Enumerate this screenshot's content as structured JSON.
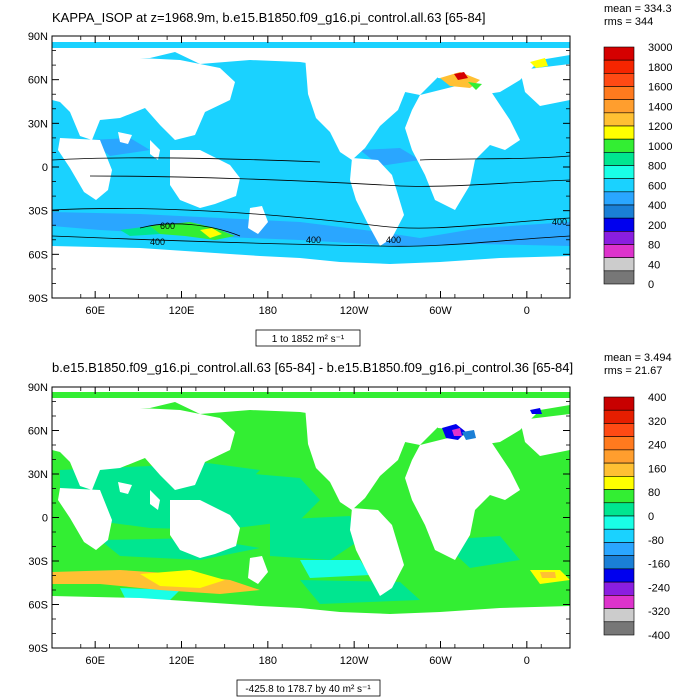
{
  "chart_data": [
    {
      "type": "heatmap",
      "title": "KAPPA_ISOP at z=1968.9m, b.e15.B1850.f09_g16.pi_control.all.63 [65-84]",
      "stats": [
        "mean = 334.3",
        "rms = 344"
      ],
      "y_ticks": [
        "90N",
        "60N",
        "30N",
        "0",
        "30S",
        "60S",
        "90S"
      ],
      "x_ticks": [
        "60E",
        "120E",
        "180",
        "120W",
        "60W",
        "0"
      ],
      "range_label": "1 to 1852 m² s⁻¹",
      "contour_labels": [
        "600",
        "400",
        "400",
        "400",
        "400"
      ],
      "colorbar": {
        "labels": [
          "3000",
          "1800",
          "1600",
          "1400",
          "1200",
          "1000",
          "800",
          "600",
          "400",
          "200",
          "80",
          "40",
          "0"
        ],
        "colors": [
          "#d50000",
          "#f52500",
          "#ff4a14",
          "#ff7a1e",
          "#ff9e2e",
          "#ffc033",
          "#ffff00",
          "#33ee33",
          "#00e690",
          "#19ffe6",
          "#1ad2ff",
          "#2aa6ff",
          "#1a7fd6",
          "#0000ee",
          "#8a1ee0",
          "#dd33cc",
          "#cccccc",
          "#777777"
        ]
      }
    },
    {
      "type": "heatmap",
      "title": "b.e15.B1850.f09_g16.pi_control.all.63 [65-84] - b.e15.B1850.f09_g16.pi_control.36 [65-84]",
      "stats": [
        "mean = 3.494",
        "rms = 21.67"
      ],
      "y_ticks": [
        "90N",
        "60N",
        "30N",
        "0",
        "30S",
        "60S",
        "90S"
      ],
      "x_ticks": [
        "60E",
        "120E",
        "180",
        "120W",
        "60W",
        "0"
      ],
      "range_label": "-425.8 to 178.7 by 40 m² s⁻¹",
      "colorbar": {
        "labels": [
          "400",
          "320",
          "240",
          "160",
          "80",
          "0",
          "-80",
          "-160",
          "-240",
          "-320",
          "-400"
        ],
        "colors": [
          "#c80000",
          "#e61e00",
          "#ff4a14",
          "#ff7a1e",
          "#ff9e2e",
          "#ffc033",
          "#ffff00",
          "#33ee33",
          "#00e690",
          "#19ffe6",
          "#1ad2ff",
          "#2aa6ff",
          "#1a7fd6",
          "#0000ee",
          "#8a1ee0",
          "#dd33cc",
          "#cccccc",
          "#777777"
        ]
      }
    }
  ]
}
